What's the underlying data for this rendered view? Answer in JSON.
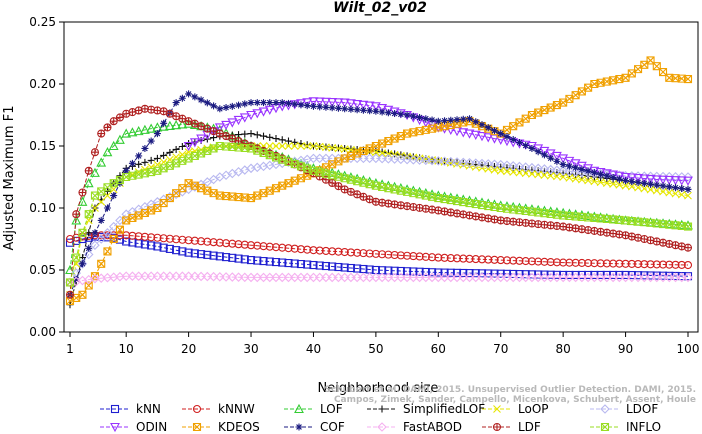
{
  "chart_data": {
    "type": "line",
    "title": "Wilt_02_v02",
    "xlabel": "Neighborhood size",
    "ylabel": "Adjusted Maximum F1",
    "xlim": [
      1,
      100
    ],
    "ylim": [
      0.0,
      0.25
    ],
    "xticks": [
      "1",
      "10",
      "20",
      "30",
      "40",
      "50",
      "60",
      "70",
      "80",
      "90",
      "100"
    ],
    "yticks": [
      "0.00",
      "0.05",
      "0.10",
      "0.15",
      "0.20",
      "0.25"
    ],
    "grid": false,
    "legend_position": "bottom",
    "watermark": [
      "Schubert et al. DAMI, 2015. Unsupervised Outlier Detection. DAMI, 2015.",
      "Campos, Zimek, Sander, Campello, Micenkova, Schubert, Assent, Houle"
    ],
    "series": [
      {
        "name": "kNN",
        "color": "#1f1fd0",
        "marker": "square",
        "points": [
          [
            1,
            0.072
          ],
          [
            3,
            0.075
          ],
          [
            5,
            0.077
          ],
          [
            8,
            0.076
          ],
          [
            10,
            0.073
          ],
          [
            15,
            0.069
          ],
          [
            20,
            0.064
          ],
          [
            25,
            0.061
          ],
          [
            30,
            0.058
          ],
          [
            40,
            0.054
          ],
          [
            50,
            0.05
          ],
          [
            60,
            0.048
          ],
          [
            70,
            0.047
          ],
          [
            80,
            0.046
          ],
          [
            90,
            0.046
          ],
          [
            100,
            0.045
          ]
        ]
      },
      {
        "name": "kNNW",
        "color": "#d01f1f",
        "marker": "circle",
        "points": [
          [
            1,
            0.075
          ],
          [
            3,
            0.077
          ],
          [
            5,
            0.078
          ],
          [
            8,
            0.078
          ],
          [
            10,
            0.078
          ],
          [
            20,
            0.074
          ],
          [
            30,
            0.07
          ],
          [
            40,
            0.066
          ],
          [
            50,
            0.063
          ],
          [
            60,
            0.06
          ],
          [
            70,
            0.058
          ],
          [
            80,
            0.056
          ],
          [
            90,
            0.055
          ],
          [
            100,
            0.054
          ]
        ]
      },
      {
        "name": "LOF",
        "color": "#33cc33",
        "marker": "triangle-up",
        "points": [
          [
            1,
            0.05
          ],
          [
            2,
            0.09
          ],
          [
            4,
            0.12
          ],
          [
            7,
            0.145
          ],
          [
            10,
            0.16
          ],
          [
            15,
            0.165
          ],
          [
            20,
            0.168
          ],
          [
            25,
            0.163
          ],
          [
            30,
            0.15
          ],
          [
            40,
            0.132
          ],
          [
            50,
            0.12
          ],
          [
            60,
            0.11
          ],
          [
            70,
            0.102
          ],
          [
            80,
            0.096
          ],
          [
            90,
            0.09
          ],
          [
            100,
            0.086
          ]
        ]
      },
      {
        "name": "SimplifiedLOF",
        "color": "#111111",
        "marker": "plus",
        "points": [
          [
            1,
            0.022
          ],
          [
            3,
            0.06
          ],
          [
            5,
            0.1
          ],
          [
            8,
            0.12
          ],
          [
            10,
            0.132
          ],
          [
            15,
            0.14
          ],
          [
            20,
            0.152
          ],
          [
            25,
            0.158
          ],
          [
            30,
            0.16
          ],
          [
            35,
            0.155
          ],
          [
            40,
            0.15
          ],
          [
            50,
            0.146
          ],
          [
            60,
            0.138
          ],
          [
            70,
            0.133
          ],
          [
            80,
            0.128
          ],
          [
            90,
            0.122
          ],
          [
            100,
            0.115
          ]
        ]
      },
      {
        "name": "LoOP",
        "color": "#e6e600",
        "marker": "x",
        "points": [
          [
            1,
            0.03
          ],
          [
            3,
            0.08
          ],
          [
            5,
            0.1
          ],
          [
            8,
            0.115
          ],
          [
            10,
            0.125
          ],
          [
            15,
            0.135
          ],
          [
            20,
            0.145
          ],
          [
            25,
            0.15
          ],
          [
            30,
            0.15
          ],
          [
            40,
            0.15
          ],
          [
            50,
            0.145
          ],
          [
            60,
            0.138
          ],
          [
            70,
            0.13
          ],
          [
            80,
            0.125
          ],
          [
            90,
            0.118
          ],
          [
            100,
            0.11
          ]
        ]
      },
      {
        "name": "LDOF",
        "color": "#b8b8f0",
        "marker": "diamond",
        "points": [
          [
            1,
            0.04
          ],
          [
            5,
            0.07
          ],
          [
            10,
            0.095
          ],
          [
            15,
            0.105
          ],
          [
            20,
            0.115
          ],
          [
            25,
            0.125
          ],
          [
            30,
            0.132
          ],
          [
            40,
            0.14
          ],
          [
            50,
            0.14
          ],
          [
            60,
            0.138
          ],
          [
            70,
            0.135
          ],
          [
            80,
            0.13
          ],
          [
            90,
            0.126
          ],
          [
            100,
            0.125
          ]
        ]
      },
      {
        "name": "ODIN",
        "color": "#9933ff",
        "marker": "triangle-down",
        "points": [
          [
            20,
            0.15
          ],
          [
            25,
            0.165
          ],
          [
            30,
            0.175
          ],
          [
            35,
            0.182
          ],
          [
            40,
            0.186
          ],
          [
            45,
            0.185
          ],
          [
            50,
            0.182
          ],
          [
            55,
            0.175
          ],
          [
            60,
            0.165
          ],
          [
            65,
            0.16
          ],
          [
            70,
            0.155
          ],
          [
            75,
            0.15
          ],
          [
            80,
            0.14
          ],
          [
            85,
            0.13
          ],
          [
            90,
            0.125
          ],
          [
            95,
            0.123
          ],
          [
            100,
            0.122
          ]
        ]
      },
      {
        "name": "KDEOS",
        "color": "#f0a000",
        "marker": "square-x",
        "points": [
          [
            1,
            0.025
          ],
          [
            3,
            0.03
          ],
          [
            5,
            0.045
          ],
          [
            8,
            0.075
          ],
          [
            10,
            0.09
          ],
          [
            15,
            0.1
          ],
          [
            20,
            0.12
          ],
          [
            25,
            0.11
          ],
          [
            30,
            0.108
          ],
          [
            35,
            0.118
          ],
          [
            40,
            0.128
          ],
          [
            45,
            0.14
          ],
          [
            50,
            0.15
          ],
          [
            55,
            0.16
          ],
          [
            60,
            0.165
          ],
          [
            65,
            0.17
          ],
          [
            70,
            0.16
          ],
          [
            75,
            0.175
          ],
          [
            80,
            0.185
          ],
          [
            85,
            0.2
          ],
          [
            90,
            0.205
          ],
          [
            94,
            0.219
          ],
          [
            97,
            0.205
          ],
          [
            100,
            0.204
          ]
        ]
      },
      {
        "name": "COF",
        "color": "#1a1a80",
        "marker": "star",
        "points": [
          [
            1,
            0.03
          ],
          [
            5,
            0.08
          ],
          [
            10,
            0.13
          ],
          [
            15,
            0.16
          ],
          [
            18,
            0.185
          ],
          [
            20,
            0.192
          ],
          [
            25,
            0.18
          ],
          [
            30,
            0.185
          ],
          [
            35,
            0.185
          ],
          [
            40,
            0.182
          ],
          [
            45,
            0.18
          ],
          [
            50,
            0.178
          ],
          [
            55,
            0.175
          ],
          [
            60,
            0.17
          ],
          [
            65,
            0.172
          ],
          [
            70,
            0.16
          ],
          [
            75,
            0.148
          ],
          [
            80,
            0.135
          ],
          [
            90,
            0.122
          ],
          [
            100,
            0.115
          ]
        ]
      },
      {
        "name": "FastABOD",
        "color": "#f5b0f0",
        "marker": "diamond",
        "points": [
          [
            1,
            0.04
          ],
          [
            5,
            0.043
          ],
          [
            10,
            0.045
          ],
          [
            20,
            0.045
          ],
          [
            30,
            0.044
          ],
          [
            40,
            0.044
          ],
          [
            50,
            0.044
          ],
          [
            60,
            0.044
          ],
          [
            70,
            0.044
          ],
          [
            80,
            0.044
          ],
          [
            90,
            0.044
          ],
          [
            100,
            0.044
          ]
        ]
      },
      {
        "name": "LDF",
        "color": "#b02020",
        "marker": "circle-plus",
        "points": [
          [
            1,
            0.03
          ],
          [
            2,
            0.095
          ],
          [
            4,
            0.13
          ],
          [
            6,
            0.16
          ],
          [
            8,
            0.17
          ],
          [
            10,
            0.176
          ],
          [
            13,
            0.18
          ],
          [
            16,
            0.178
          ],
          [
            20,
            0.17
          ],
          [
            25,
            0.16
          ],
          [
            30,
            0.15
          ],
          [
            35,
            0.14
          ],
          [
            40,
            0.128
          ],
          [
            45,
            0.115
          ],
          [
            50,
            0.105
          ],
          [
            60,
            0.098
          ],
          [
            70,
            0.09
          ],
          [
            80,
            0.085
          ],
          [
            90,
            0.078
          ],
          [
            100,
            0.068
          ]
        ]
      },
      {
        "name": "INFLO",
        "color": "#99dd22",
        "marker": "square-x",
        "points": [
          [
            1,
            0.04
          ],
          [
            3,
            0.08
          ],
          [
            5,
            0.11
          ],
          [
            8,
            0.12
          ],
          [
            10,
            0.125
          ],
          [
            15,
            0.13
          ],
          [
            20,
            0.14
          ],
          [
            25,
            0.15
          ],
          [
            30,
            0.148
          ],
          [
            40,
            0.13
          ],
          [
            50,
            0.118
          ],
          [
            60,
            0.108
          ],
          [
            70,
            0.1
          ],
          [
            80,
            0.094
          ],
          [
            90,
            0.09
          ],
          [
            100,
            0.085
          ]
        ]
      }
    ]
  }
}
